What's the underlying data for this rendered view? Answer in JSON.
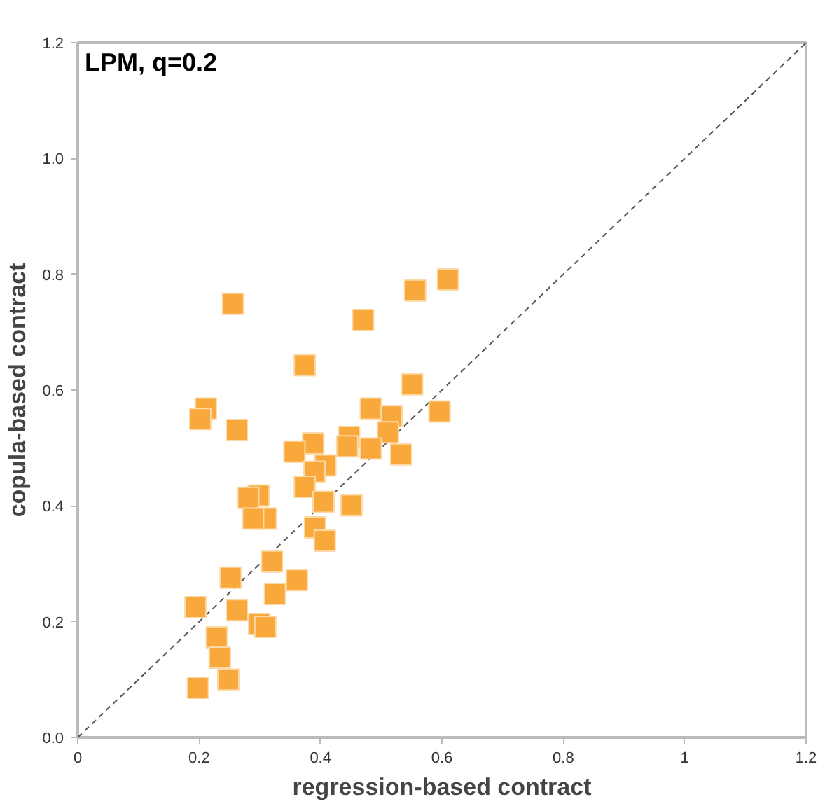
{
  "chart_data": {
    "type": "scatter",
    "title": "LPM, q=0.2",
    "xlabel": "regression-based contract",
    "ylabel": "copula-based contract",
    "xlim": [
      0,
      1.2
    ],
    "ylim": [
      0,
      1.2
    ],
    "xticks": [
      0,
      0.2,
      0.4,
      0.6,
      0.8,
      1,
      1.2
    ],
    "yticks": [
      {
        "value": 0,
        "label": "0.0"
      },
      0.2,
      0.4,
      0.6,
      0.8,
      {
        "value": 1,
        "label": "1.0"
      },
      1.2
    ],
    "grid": false,
    "series": [
      {
        "color": "#f9a83c",
        "marker": "square",
        "x": [
          0.256,
          0.47,
          0.556,
          0.61,
          0.374,
          0.551,
          0.596,
          0.211,
          0.202,
          0.262,
          0.483,
          0.517,
          0.511,
          0.447,
          0.444,
          0.483,
          0.533,
          0.388,
          0.357,
          0.408,
          0.39,
          0.374,
          0.298,
          0.281,
          0.31,
          0.289,
          0.405,
          0.451,
          0.391,
          0.407,
          0.32,
          0.252,
          0.361,
          0.325,
          0.194,
          0.262,
          0.299,
          0.309,
          0.229,
          0.234,
          0.248,
          0.198
        ],
        "values": [
          0.749,
          0.721,
          0.772,
          0.791,
          0.643,
          0.61,
          0.563,
          0.568,
          0.55,
          0.531,
          0.568,
          0.555,
          0.527,
          0.519,
          0.503,
          0.499,
          0.489,
          0.508,
          0.494,
          0.47,
          0.459,
          0.433,
          0.418,
          0.414,
          0.378,
          0.378,
          0.407,
          0.401,
          0.363,
          0.34,
          0.304,
          0.276,
          0.272,
          0.248,
          0.225,
          0.22,
          0.196,
          0.191,
          0.173,
          0.138,
          0.1,
          0.086
        ]
      },
      {
        "type": "line",
        "color": "#555555",
        "line_style": "dashed",
        "marker": "none",
        "x": [
          0,
          1.2
        ],
        "values": [
          0,
          1.2
        ]
      }
    ]
  }
}
